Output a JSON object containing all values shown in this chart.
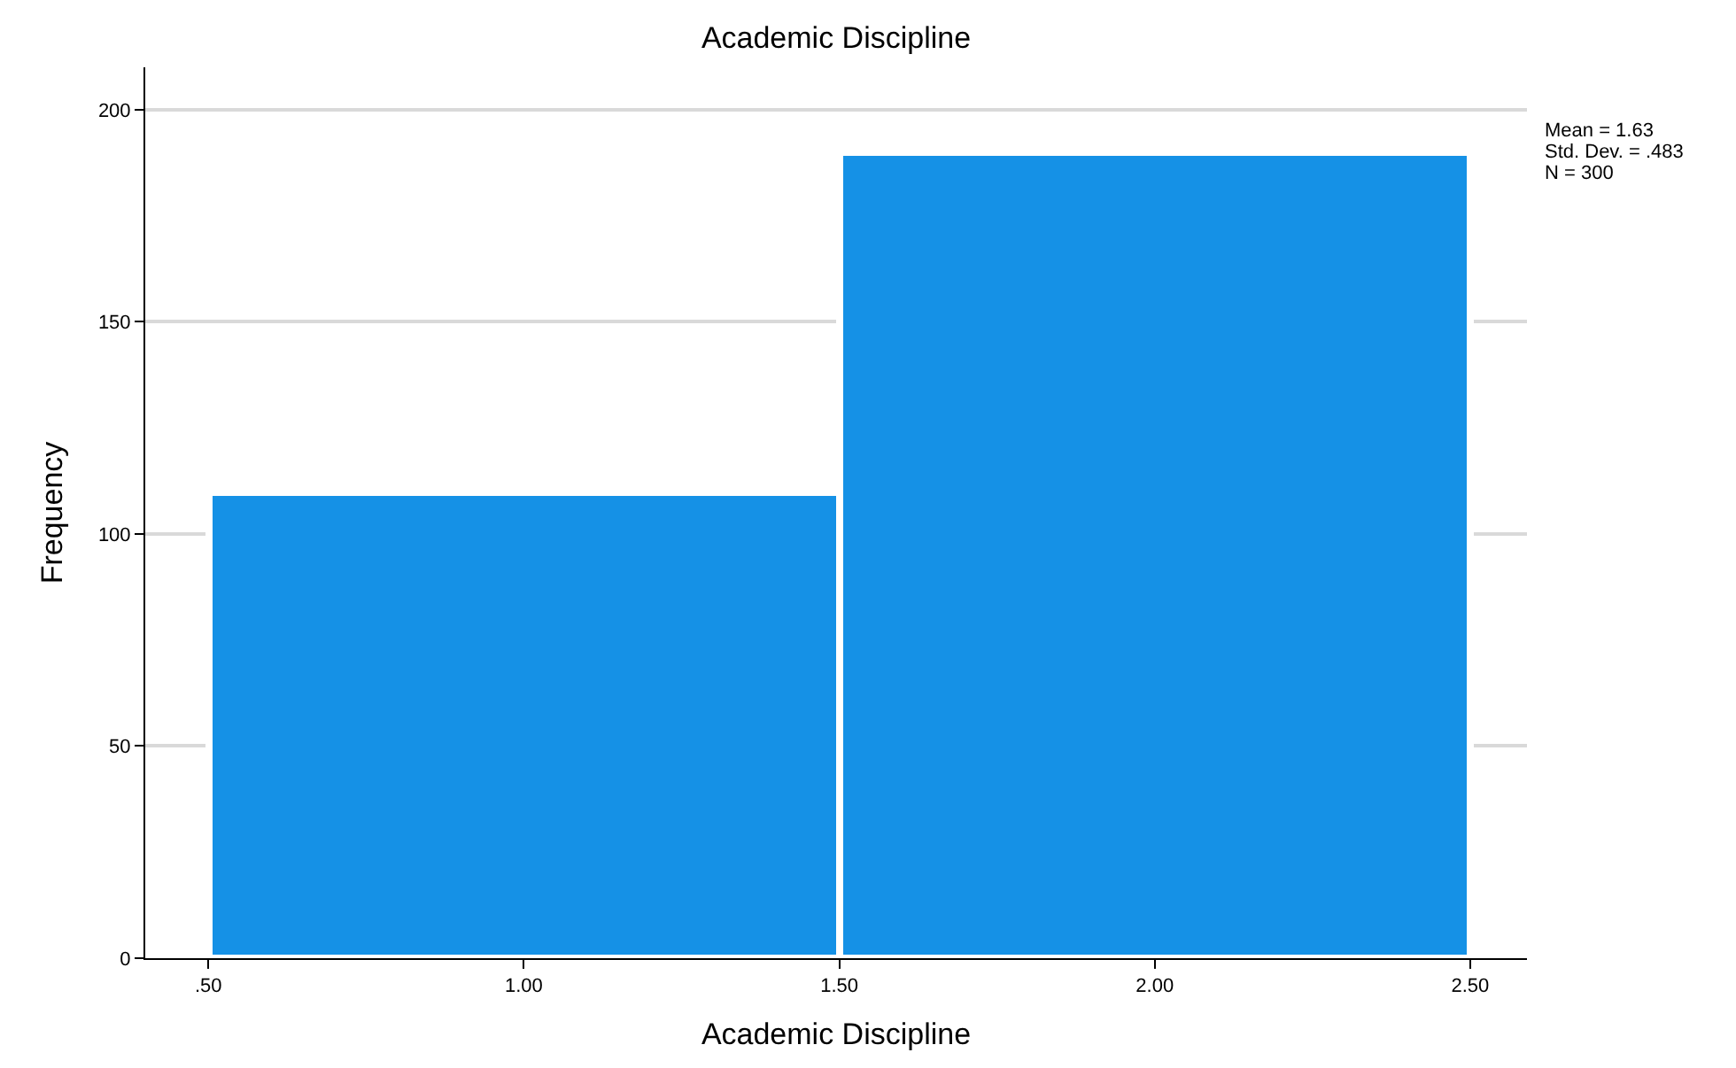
{
  "chart_data": {
    "type": "histogram",
    "title": "Academic Discipline",
    "xlabel": "Academic Discipline",
    "ylabel": "Frequency",
    "bins": [
      0.5,
      1.5,
      2.5
    ],
    "values": [
      110,
      190
    ],
    "color": "#1591e6",
    "xlim": [
      0.4,
      2.59
    ],
    "xticks": [
      {
        "value": 0.5,
        "label": ".50"
      },
      {
        "value": 1,
        "label": "1.00"
      },
      {
        "value": 1.5,
        "label": "1.50"
      },
      {
        "value": 2,
        "label": "2.00"
      },
      {
        "value": 2.5,
        "label": "2.50"
      }
    ],
    "ylim": [
      0,
      210
    ],
    "yticks": [
      0,
      50,
      100,
      150,
      200
    ],
    "grid": "y",
    "annotations": [
      "Mean = 1.63",
      "Std. Dev. = .483",
      "N = 300"
    ]
  }
}
